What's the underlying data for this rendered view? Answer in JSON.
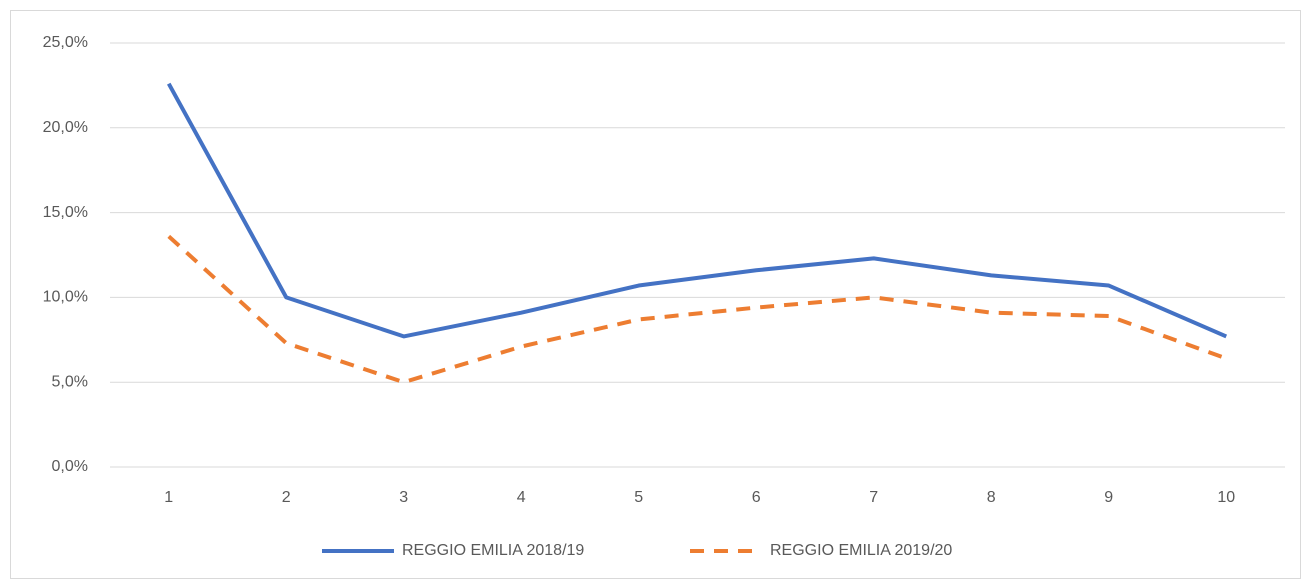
{
  "chart_data": {
    "type": "line",
    "categories": [
      1,
      2,
      3,
      4,
      5,
      6,
      7,
      8,
      9,
      10
    ],
    "series": [
      {
        "name": "REGGIO EMILIA 2018/19",
        "color": "#4472c4",
        "dashed": false,
        "values": [
          22.6,
          10.0,
          7.7,
          9.1,
          10.7,
          11.6,
          12.3,
          11.3,
          10.7,
          7.7
        ]
      },
      {
        "name": "REGGIO EMILIA 2019/20",
        "color": "#ed7d31",
        "dashed": true,
        "values": [
          13.6,
          7.3,
          5.0,
          7.1,
          8.7,
          9.4,
          10.0,
          9.1,
          8.9,
          6.4
        ]
      }
    ],
    "ylim": [
      0,
      25
    ],
    "yticks": [
      {
        "value": 0,
        "label": "0,0%"
      },
      {
        "value": 5,
        "label": "5,0%"
      },
      {
        "value": 10,
        "label": "10,0%"
      },
      {
        "value": 15,
        "label": "15,0%"
      },
      {
        "value": 20,
        "label": "20,0%"
      },
      {
        "value": 25,
        "label": "25,0%"
      }
    ],
    "grid": true,
    "legend": "bottom"
  }
}
